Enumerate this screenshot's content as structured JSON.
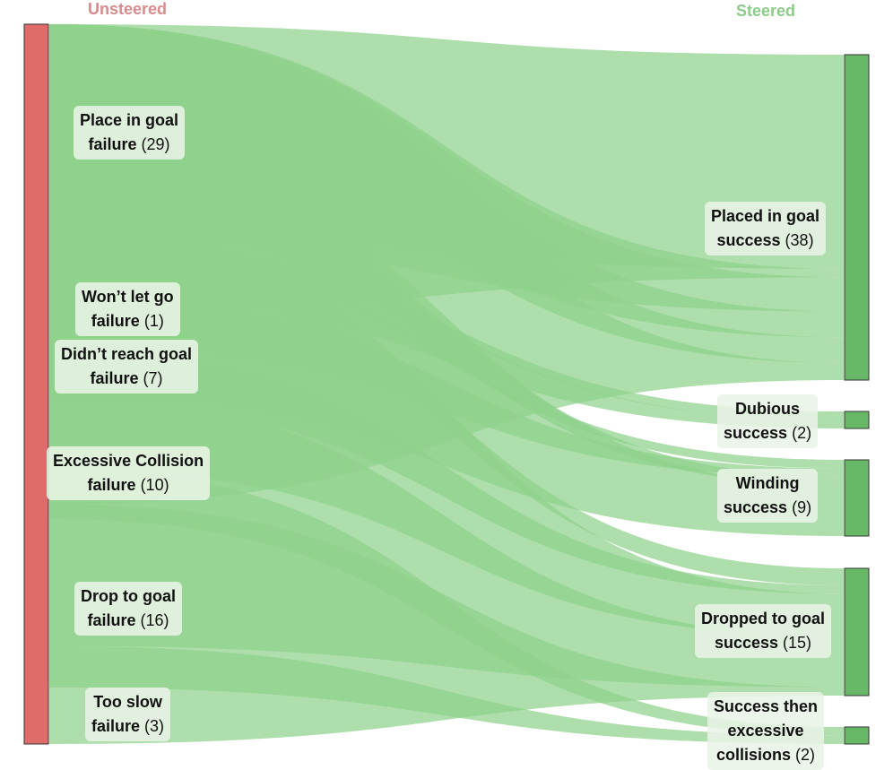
{
  "titles": {
    "left": "Unsteered",
    "right": "Steered"
  },
  "colors": {
    "left_node": "#e06b6b",
    "right_node": "#66b866",
    "link": "#8fd18c",
    "left_title": "#d98a8a",
    "right_title": "#8ccc8a"
  },
  "left_nodes": [
    {
      "id": "pig",
      "line1": "Place in goal",
      "line2": "failure",
      "count": "(29)"
    },
    {
      "id": "wlg",
      "line1": "Won’t let go",
      "line2": "failure",
      "count": "(1)"
    },
    {
      "id": "drg",
      "line1": "Didn’t reach goal",
      "line2": "failure",
      "count": "(7)"
    },
    {
      "id": "exc",
      "line1": "Excessive Collision",
      "line2": "failure",
      "count": "(10)"
    },
    {
      "id": "dtg",
      "line1": "Drop to goal",
      "line2": "failure",
      "count": "(16)"
    },
    {
      "id": "tsl",
      "line1": "Too slow",
      "line2": "failure",
      "count": "(3)"
    }
  ],
  "right_nodes": [
    {
      "id": "plc",
      "line1": "Placed in goal",
      "line2": "success",
      "count": "(38)"
    },
    {
      "id": "dub",
      "line1": "Dubious",
      "line2": "success",
      "count": "(2)"
    },
    {
      "id": "win",
      "line1": "Winding",
      "line2": "success",
      "count": "(9)"
    },
    {
      "id": "drp",
      "line1": "Dropped to goal",
      "line2": "success",
      "count": "(15)"
    },
    {
      "id": "ste",
      "line1": "Success then",
      "line2": "excessive",
      "line3": "collisions",
      "count": "(2)"
    }
  ],
  "flows": [
    {
      "from": "pig",
      "to": "plc",
      "value": 25
    },
    {
      "from": "pig",
      "to": "dub",
      "value": 1
    },
    {
      "from": "pig",
      "to": "win",
      "value": 1
    },
    {
      "from": "pig",
      "to": "drp",
      "value": 2
    },
    {
      "from": "wlg",
      "to": "plc",
      "value": 1
    },
    {
      "from": "drg",
      "to": "plc",
      "value": 4
    },
    {
      "from": "drg",
      "to": "dub",
      "value": 1
    },
    {
      "from": "drg",
      "to": "win",
      "value": 1
    },
    {
      "from": "drg",
      "to": "drp",
      "value": 1
    },
    {
      "from": "exc",
      "to": "plc",
      "value": 3
    },
    {
      "from": "exc",
      "to": "win",
      "value": 1
    },
    {
      "from": "exc",
      "to": "drp",
      "value": 5
    },
    {
      "from": "exc",
      "to": "ste",
      "value": 1
    },
    {
      "from": "dtg",
      "to": "plc",
      "value": 3
    },
    {
      "from": "dtg",
      "to": "win",
      "value": 6
    },
    {
      "from": "dtg",
      "to": "drp",
      "value": 6
    },
    {
      "from": "dtg",
      "to": "ste",
      "value": 1
    },
    {
      "from": "tsl",
      "to": "plc",
      "value": 2
    },
    {
      "from": "tsl",
      "to": "drp",
      "value": 1
    }
  ]
}
